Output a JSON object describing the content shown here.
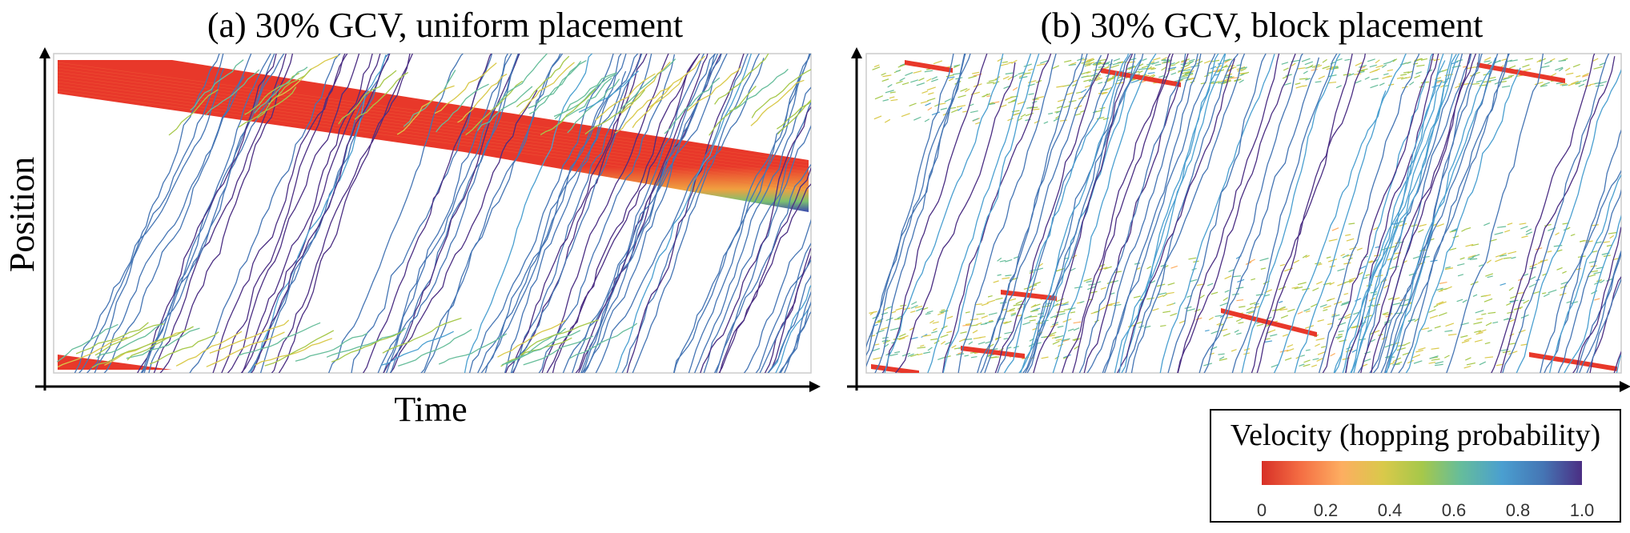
{
  "chart_data": [
    {
      "type": "spacetime-diagram",
      "title": "(a) 30% GCV, uniform placement",
      "xlabel": "Time",
      "ylabel": "Position",
      "colorscale": "Velocity (hopping probability)"
    },
    {
      "type": "spacetime-diagram",
      "title": "(b) 30% GCV, block placement",
      "xlabel": "",
      "ylabel": "",
      "colorscale": "Velocity (hopping probability)"
    }
  ],
  "legend": {
    "title": "Velocity (hopping probability)",
    "range": [
      0,
      1
    ],
    "ticks": [
      "0",
      "0.2",
      "0.4",
      "0.6",
      "0.8",
      "1.0"
    ],
    "colors": [
      "#d73027",
      "#f46d43",
      "#fdae61",
      "#d9c94a",
      "#a6c84a",
      "#66bd9a",
      "#4a9fd0",
      "#4575b4",
      "#4b2e83"
    ]
  }
}
